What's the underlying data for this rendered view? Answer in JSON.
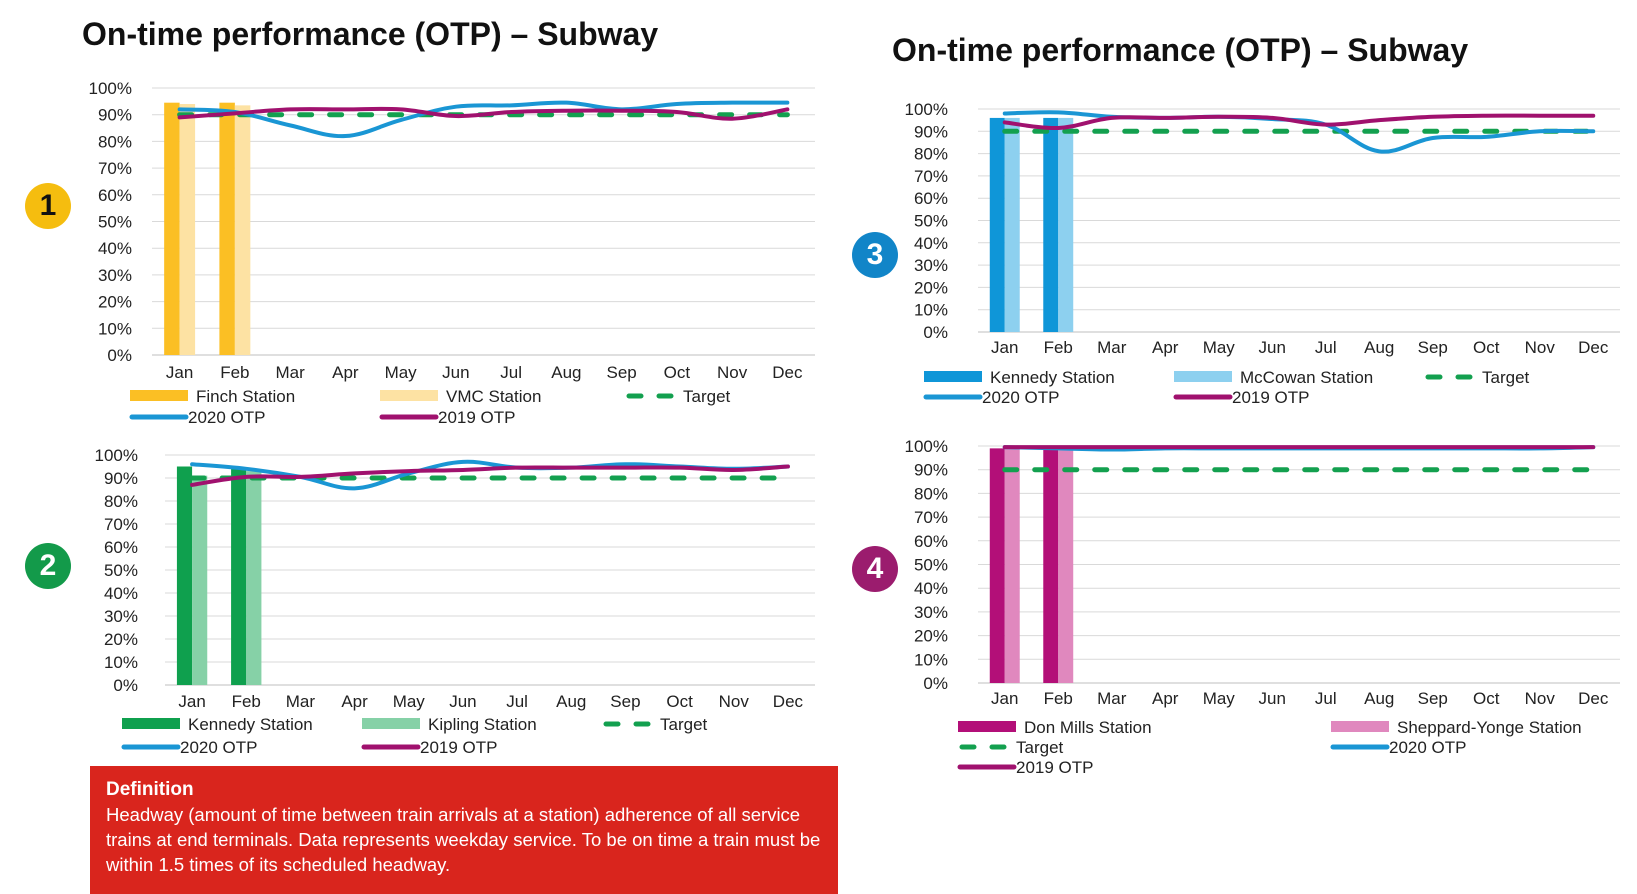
{
  "titles": {
    "left": "On-time performance (OTP) – Subway",
    "right": "On-time performance (OTP) – Subway"
  },
  "badges": [
    "1",
    "2",
    "3",
    "4"
  ],
  "definition": {
    "title": "Definition",
    "text": "Headway (amount of time between train arrivals at a station) adherence of all service trains at end terminals. Data represents weekday service. To be on time a train must be within 1.5 times of its scheduled headway."
  },
  "colors": {
    "target": "#13a04f",
    "otp2020": "#1a96d4",
    "otp2019": "#a0116e",
    "grid": "#d9d9d9"
  },
  "chart_data": [
    {
      "id": 1,
      "type": "bar+line",
      "categories": [
        "Jan",
        "Feb",
        "Mar",
        "Apr",
        "May",
        "Jun",
        "Jul",
        "Aug",
        "Sep",
        "Oct",
        "Nov",
        "Dec"
      ],
      "yticks": [
        "0%",
        "10%",
        "20%",
        "30%",
        "40%",
        "50%",
        "60%",
        "70%",
        "80%",
        "90%",
        "100%"
      ],
      "ylim": [
        0,
        100
      ],
      "grid": true,
      "legend_position": "bottom",
      "bars": [
        {
          "name": "Finch Station",
          "color": "#fbbf24",
          "values": [
            94.5,
            94.5,
            null,
            null,
            null,
            null,
            null,
            null,
            null,
            null,
            null,
            null
          ]
        },
        {
          "name": "VMC Station",
          "color": "#fde2a3",
          "values": [
            94,
            93.5,
            null,
            null,
            null,
            null,
            null,
            null,
            null,
            null,
            null,
            null
          ]
        }
      ],
      "lines": [
        {
          "name": "Target",
          "style": "dashed",
          "color": "#13a04f",
          "values": [
            90,
            90,
            90,
            90,
            90,
            90,
            90,
            90,
            90,
            90,
            90,
            90
          ]
        },
        {
          "name": "2020 OTP",
          "style": "solid",
          "color": "#1a96d4",
          "values": [
            92,
            91,
            86,
            82,
            88,
            93,
            93.5,
            94.5,
            92,
            94,
            94.5,
            94.5
          ]
        },
        {
          "name": "2019 OTP",
          "style": "solid",
          "color": "#a0116e",
          "values": [
            89,
            90.5,
            92,
            92,
            92,
            89.5,
            91,
            91.5,
            91.5,
            91,
            88.5,
            92
          ]
        }
      ],
      "legend_rows": [
        [
          "Finch Station",
          "VMC Station",
          "Target"
        ],
        [
          "2020 OTP",
          "2019 OTP"
        ]
      ]
    },
    {
      "id": 2,
      "type": "bar+line",
      "categories": [
        "Jan",
        "Feb",
        "Mar",
        "Apr",
        "May",
        "Jun",
        "Jul",
        "Aug",
        "Sep",
        "Oct",
        "Nov",
        "Dec"
      ],
      "yticks": [
        "0%",
        "10%",
        "20%",
        "30%",
        "40%",
        "50%",
        "60%",
        "70%",
        "80%",
        "90%",
        "100%"
      ],
      "ylim": [
        0,
        100
      ],
      "grid": true,
      "legend_position": "bottom",
      "bars": [
        {
          "name": "Kennedy Station",
          "color": "#0fa04e",
          "values": [
            95,
            94,
            null,
            null,
            null,
            null,
            null,
            null,
            null,
            null,
            null,
            null
          ]
        },
        {
          "name": "Kipling Station",
          "color": "#86d1a7",
          "values": [
            91,
            93,
            null,
            null,
            null,
            null,
            null,
            null,
            null,
            null,
            null,
            null
          ]
        }
      ],
      "lines": [
        {
          "name": "Target",
          "style": "dashed",
          "color": "#13a04f",
          "values": [
            90,
            90,
            90,
            90,
            90,
            90,
            90,
            90,
            90,
            90,
            90,
            90
          ]
        },
        {
          "name": "2020 OTP",
          "style": "solid",
          "color": "#1a96d4",
          "values": [
            96,
            94,
            90.5,
            85.5,
            92,
            97,
            94.5,
            94.5,
            96,
            95,
            94,
            95
          ]
        },
        {
          "name": "2019 OTP",
          "style": "solid",
          "color": "#a0116e",
          "values": [
            87,
            90.5,
            90.5,
            92,
            93,
            93.5,
            94.5,
            94.5,
            94.5,
            94.5,
            93.5,
            95
          ]
        }
      ],
      "legend_rows": [
        [
          "Kennedy Station",
          "Kipling Station",
          "Target"
        ],
        [
          "2020 OTP",
          "2019 OTP"
        ]
      ]
    },
    {
      "id": 3,
      "type": "bar+line",
      "categories": [
        "Jan",
        "Feb",
        "Mar",
        "Apr",
        "May",
        "Jun",
        "Jul",
        "Aug",
        "Sep",
        "Oct",
        "Nov",
        "Dec"
      ],
      "yticks": [
        "0%",
        "10%",
        "20%",
        "30%",
        "40%",
        "50%",
        "60%",
        "70%",
        "80%",
        "90%",
        "100%"
      ],
      "ylim": [
        0,
        100
      ],
      "grid": true,
      "legend_position": "bottom",
      "bars": [
        {
          "name": "Kennedy Station",
          "color": "#0f96d8",
          "values": [
            96,
            96,
            null,
            null,
            null,
            null,
            null,
            null,
            null,
            null,
            null,
            null
          ]
        },
        {
          "name": "McCowan Station",
          "color": "#8dd0ef",
          "values": [
            96,
            96,
            null,
            null,
            null,
            null,
            null,
            null,
            null,
            null,
            null,
            null
          ]
        }
      ],
      "lines": [
        {
          "name": "Target",
          "style": "dashed",
          "color": "#13a04f",
          "values": [
            90,
            90,
            90,
            90,
            90,
            90,
            90,
            90,
            90,
            90,
            90,
            90
          ]
        },
        {
          "name": "2020 OTP",
          "style": "solid",
          "color": "#1a96d4",
          "values": [
            98,
            98.5,
            96.5,
            96,
            96.5,
            95.5,
            93,
            81,
            87,
            87.5,
            90,
            90
          ]
        },
        {
          "name": "2019 OTP",
          "style": "solid",
          "color": "#a0116e",
          "values": [
            94,
            91.5,
            96,
            96,
            96.5,
            96,
            93,
            95,
            96.5,
            97,
            97,
            97
          ]
        }
      ],
      "legend_rows": [
        [
          "Kennedy Station",
          "McCowan Station",
          "Target"
        ],
        [
          "2020 OTP",
          "2019 OTP"
        ]
      ]
    },
    {
      "id": 4,
      "type": "bar+line",
      "categories": [
        "Jan",
        "Feb",
        "Mar",
        "Apr",
        "May",
        "Jun",
        "Jul",
        "Aug",
        "Sep",
        "Oct",
        "Nov",
        "Dec"
      ],
      "yticks": [
        "0%",
        "10%",
        "20%",
        "30%",
        "40%",
        "50%",
        "60%",
        "70%",
        "80%",
        "90%",
        "100%"
      ],
      "ylim": [
        0,
        100
      ],
      "grid": true,
      "legend_position": "bottom",
      "bars": [
        {
          "name": "Don Mills Station",
          "color": "#b30f78",
          "values": [
            99,
            99,
            null,
            null,
            null,
            null,
            null,
            null,
            null,
            null,
            null,
            null
          ]
        },
        {
          "name": "Sheppard-Yonge Station",
          "color": "#e088be",
          "values": [
            99,
            99,
            null,
            null,
            null,
            null,
            null,
            null,
            null,
            null,
            null,
            null
          ]
        }
      ],
      "lines": [
        {
          "name": "Target",
          "style": "dashed",
          "color": "#13a04f",
          "values": [
            90,
            90,
            90,
            90,
            90,
            90,
            90,
            90,
            90,
            90,
            90,
            90
          ]
        },
        {
          "name": "2020 OTP",
          "style": "solid",
          "color": "#1a96d4",
          "values": [
            99.5,
            99,
            98.5,
            99,
            99,
            99,
            99,
            99,
            99,
            99,
            99,
            99.5
          ]
        },
        {
          "name": "2019 OTP",
          "style": "solid",
          "color": "#a0116e",
          "values": [
            99.5,
            99.5,
            99.5,
            99.5,
            99.5,
            99.5,
            99.5,
            99.5,
            99.5,
            99.5,
            99.5,
            99.5
          ]
        }
      ],
      "legend_rows": [
        [
          "Don Mills Station",
          "Sheppard-Yonge Station"
        ],
        [
          "Target",
          "2020 OTP"
        ],
        [
          "2019 OTP"
        ]
      ]
    }
  ]
}
